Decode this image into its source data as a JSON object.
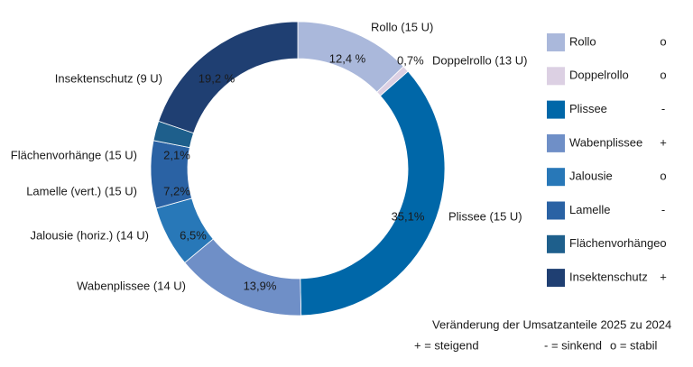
{
  "chart_data": {
    "type": "pie",
    "categories": [
      "Rollo (15 U)",
      "Doppelrollo (13 U)",
      "Plissee (15 U)",
      "Wabenplissee (14 U)",
      "Jalousie (horiz.) (14 U)",
      "Lamelle (vert.) (15 U)",
      "Flächenvorhänge (15 U)",
      "Insektenschutz (9 U)"
    ],
    "values": [
      12.4,
      0.7,
      35.1,
      13.9,
      6.5,
      7.2,
      2.1,
      19.2
    ],
    "value_labels": [
      "12,4 %",
      "0,7%",
      "35,1%",
      "13,9%",
      "6,5%",
      "7,2%",
      "2,1%",
      "19,2 %"
    ],
    "colors": [
      "#aab8db",
      "#dcd0e3",
      "#0067a8",
      "#6f8fc7",
      "#2878b8",
      "#2a62a4",
      "#1e5f8c",
      "#1f3f72"
    ],
    "legend_labels": [
      "Rollo",
      "Doppelrollo",
      "Plissee",
      "Wabenplissee",
      "Jalousie",
      "Lamelle",
      "Flächenvorhänge",
      "Insektenschutz"
    ],
    "trend": [
      "o",
      "o",
      "-",
      "+",
      "o",
      "-",
      "o",
      "+"
    ],
    "note": {
      "title": "Veränderung der Umsatzanteile 2025 zu 2024",
      "keys": [
        "+ = steigend",
        "- = sinkend",
        "o = stabil"
      ]
    }
  }
}
